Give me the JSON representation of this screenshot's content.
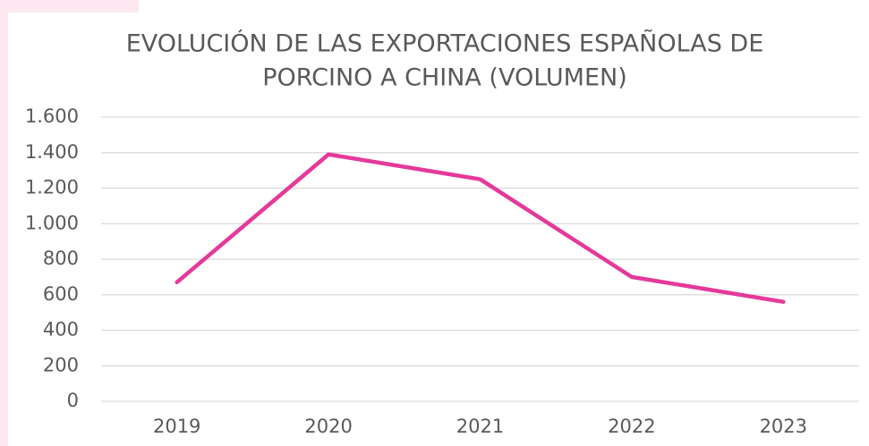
{
  "chart_data": {
    "type": "line",
    "title": [
      "EVOLUCIÓN DE LAS EXPORTACIONES ESPAÑOLAS DE",
      "PORCINO A CHINA (VOLUMEN)"
    ],
    "categories": [
      "2019",
      "2020",
      "2021",
      "2022",
      "2023"
    ],
    "series": [
      {
        "name": null,
        "color": "#e5399a",
        "values": [
          670,
          1390,
          1250,
          700,
          560
        ]
      }
    ],
    "ylim": [
      0,
      1600
    ],
    "yticks": [
      0,
      200,
      400,
      600,
      800,
      {
        "value": 1000,
        "label": "1.000"
      },
      {
        "value": 1200,
        "label": "1.200"
      },
      {
        "value": 1400,
        "label": "1.400"
      },
      {
        "value": 1600,
        "label": "1.600"
      }
    ],
    "grid": true
  }
}
